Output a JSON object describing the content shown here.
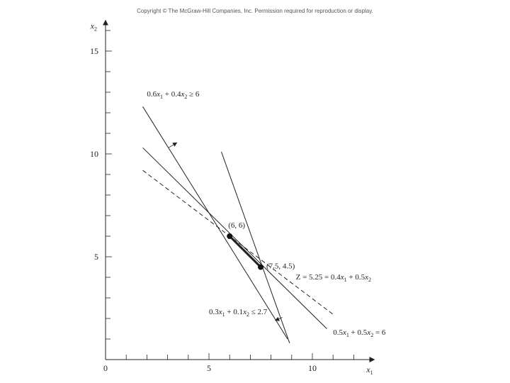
{
  "header": {
    "copyright": "Copyright © The McGraw-Hill Companies, Inc. Permission required for reproduction or display."
  },
  "chart_data": {
    "type": "line",
    "title": "",
    "xlabel": "x1",
    "ylabel": "x2",
    "xlim": [
      0,
      13
    ],
    "ylim": [
      0,
      16.5
    ],
    "x_ticks": [
      0,
      5,
      10
    ],
    "y_ticks": [
      5,
      10,
      15
    ],
    "x_minor_step": 1,
    "y_minor_step": 1,
    "grid": false,
    "series": [
      {
        "id": "c1",
        "dash": false,
        "label": "",
        "points": [
          [
            1.8,
            12.3
          ],
          [
            8.8,
            1.0
          ]
        ]
      },
      {
        "id": "c2",
        "dash": false,
        "label": "",
        "points": [
          [
            5.6,
            10.1
          ],
          [
            8.9,
            0.8
          ]
        ]
      },
      {
        "id": "c3",
        "dash": false,
        "label": "",
        "points": [
          [
            1.8,
            10.3
          ],
          [
            10.7,
            1.5
          ]
        ]
      },
      {
        "id": "z",
        "dash": true,
        "label": "",
        "points": [
          [
            1.8,
            9.2
          ],
          [
            11.0,
            2.2
          ]
        ]
      },
      {
        "id": "opt",
        "dash": false,
        "bold": true,
        "label": "",
        "points": [
          [
            6,
            6
          ],
          [
            7.5,
            4.5
          ]
        ]
      }
    ],
    "points": [
      {
        "label": "(6, 6)",
        "x": 6,
        "y": 6
      },
      {
        "label": "(7.5, 4.5)",
        "x": 7.5,
        "y": 4.5
      }
    ],
    "annotations": [
      {
        "id": "c1_label",
        "text": "0.6x1 + 0.4x2 ≥ 6",
        "x": 2.0,
        "y": 12.8
      },
      {
        "id": "c2_label",
        "text": "0.3x1 + 0.1x2 ≤ 2.7",
        "x": 5.0,
        "y": 2.2
      },
      {
        "id": "c3_label",
        "text": "0.5x1 + 0.5x2 = 6",
        "x": 11.0,
        "y": 1.2
      },
      {
        "id": "z_label",
        "text": "Z = 5.25 = 0.4x1 + 0.5x2",
        "x": 9.2,
        "y": 3.9
      }
    ]
  }
}
